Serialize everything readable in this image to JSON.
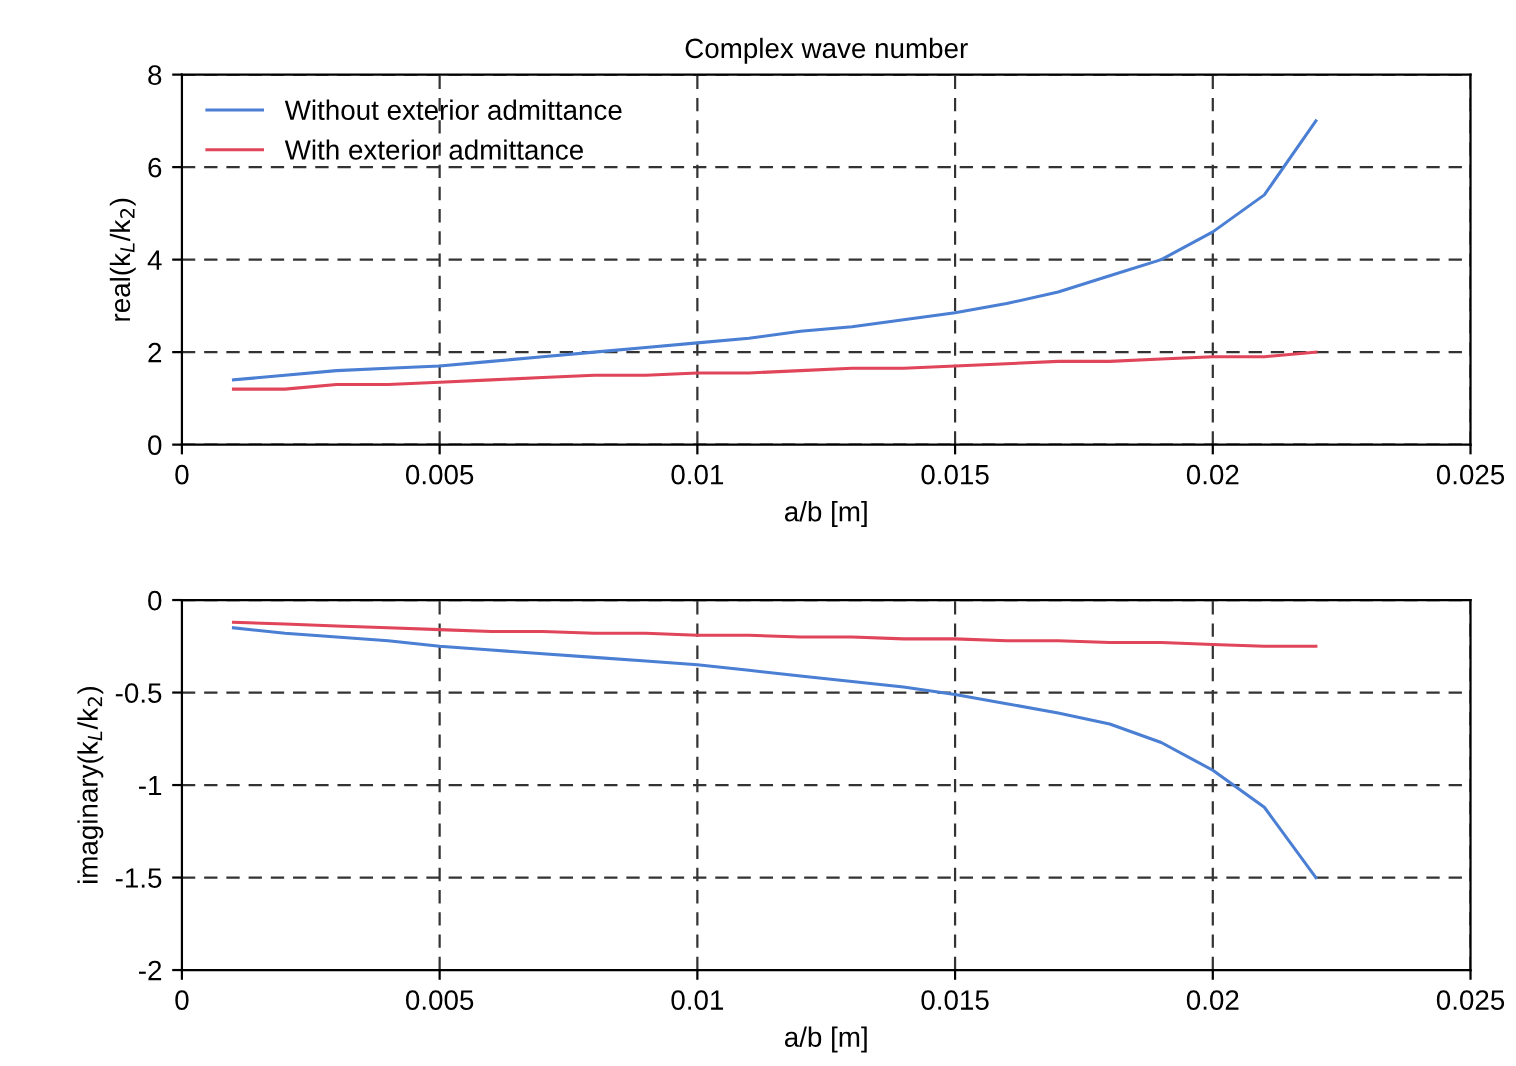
{
  "chart_data": [
    {
      "type": "line",
      "title": "Complex wave number",
      "xlabel": "a/b [m]",
      "ylabel": "real(k$_{L}$/k$_{2}$)",
      "x": [
        0.001,
        0.002,
        0.003,
        0.004,
        0.005,
        0.006,
        0.007,
        0.008,
        0.009,
        0.01,
        0.011,
        0.012,
        0.013,
        0.014,
        0.015,
        0.016,
        0.017,
        0.018,
        0.019,
        0.02,
        0.021,
        0.022
      ],
      "series": [
        {
          "name": "Without exterior admittance",
          "color": "#4a7fd4",
          "values": [
            1.4,
            1.5,
            1.6,
            1.65,
            1.7,
            1.8,
            1.9,
            2.0,
            2.1,
            2.2,
            2.3,
            2.45,
            2.55,
            2.7,
            2.85,
            3.05,
            3.3,
            3.65,
            4.0,
            4.6,
            5.4,
            7.0
          ]
        },
        {
          "name": "With exterior admittance",
          "color": "#e0455a",
          "values": [
            1.2,
            1.2,
            1.3,
            1.3,
            1.35,
            1.4,
            1.45,
            1.5,
            1.5,
            1.55,
            1.55,
            1.6,
            1.65,
            1.65,
            1.7,
            1.75,
            1.8,
            1.8,
            1.85,
            1.9,
            1.9,
            2.0
          ]
        }
      ],
      "xlim": [
        0,
        0.025
      ],
      "xticks": [
        0,
        0.005,
        0.01,
        0.015,
        0.02,
        0.025
      ],
      "ylim": [
        0,
        8
      ],
      "yticks": [
        0,
        2,
        4,
        6,
        8
      ],
      "grid": true,
      "legend": "top left",
      "line_style": "solid"
    },
    {
      "type": "line",
      "xlabel": "a/b [m]",
      "ylabel": "imaginary(k$_{L}$/k$_{2}$)",
      "x": [
        0.001,
        0.002,
        0.003,
        0.004,
        0.005,
        0.006,
        0.007,
        0.008,
        0.009,
        0.01,
        0.011,
        0.012,
        0.013,
        0.014,
        0.015,
        0.016,
        0.017,
        0.018,
        0.019,
        0.02,
        0.021,
        0.022
      ],
      "series": [
        {
          "color": "#4a7fd4",
          "values": [
            -0.15,
            -0.18,
            -0.2,
            -0.22,
            -0.25,
            -0.27,
            -0.29,
            -0.31,
            -0.33,
            -0.35,
            -0.38,
            -0.41,
            -0.44,
            -0.47,
            -0.51,
            -0.56,
            -0.61,
            -0.67,
            -0.77,
            -0.92,
            -1.12,
            -1.5
          ]
        },
        {
          "color": "#e0455a",
          "values": [
            -0.12,
            -0.13,
            -0.14,
            -0.15,
            -0.16,
            -0.17,
            -0.17,
            -0.18,
            -0.18,
            -0.19,
            -0.19,
            -0.2,
            -0.2,
            -0.21,
            -0.21,
            -0.22,
            -0.22,
            -0.23,
            -0.23,
            -0.24,
            -0.25,
            -0.25
          ]
        }
      ],
      "xlim": [
        0,
        0.025
      ],
      "xticks": [
        0,
        0.005,
        0.01,
        0.015,
        0.02,
        0.025
      ],
      "ylim": [
        -2,
        0
      ],
      "yticks": [
        -2,
        -1.5,
        -1,
        -0.5,
        0
      ],
      "grid": true,
      "line_style": "solid"
    }
  ]
}
